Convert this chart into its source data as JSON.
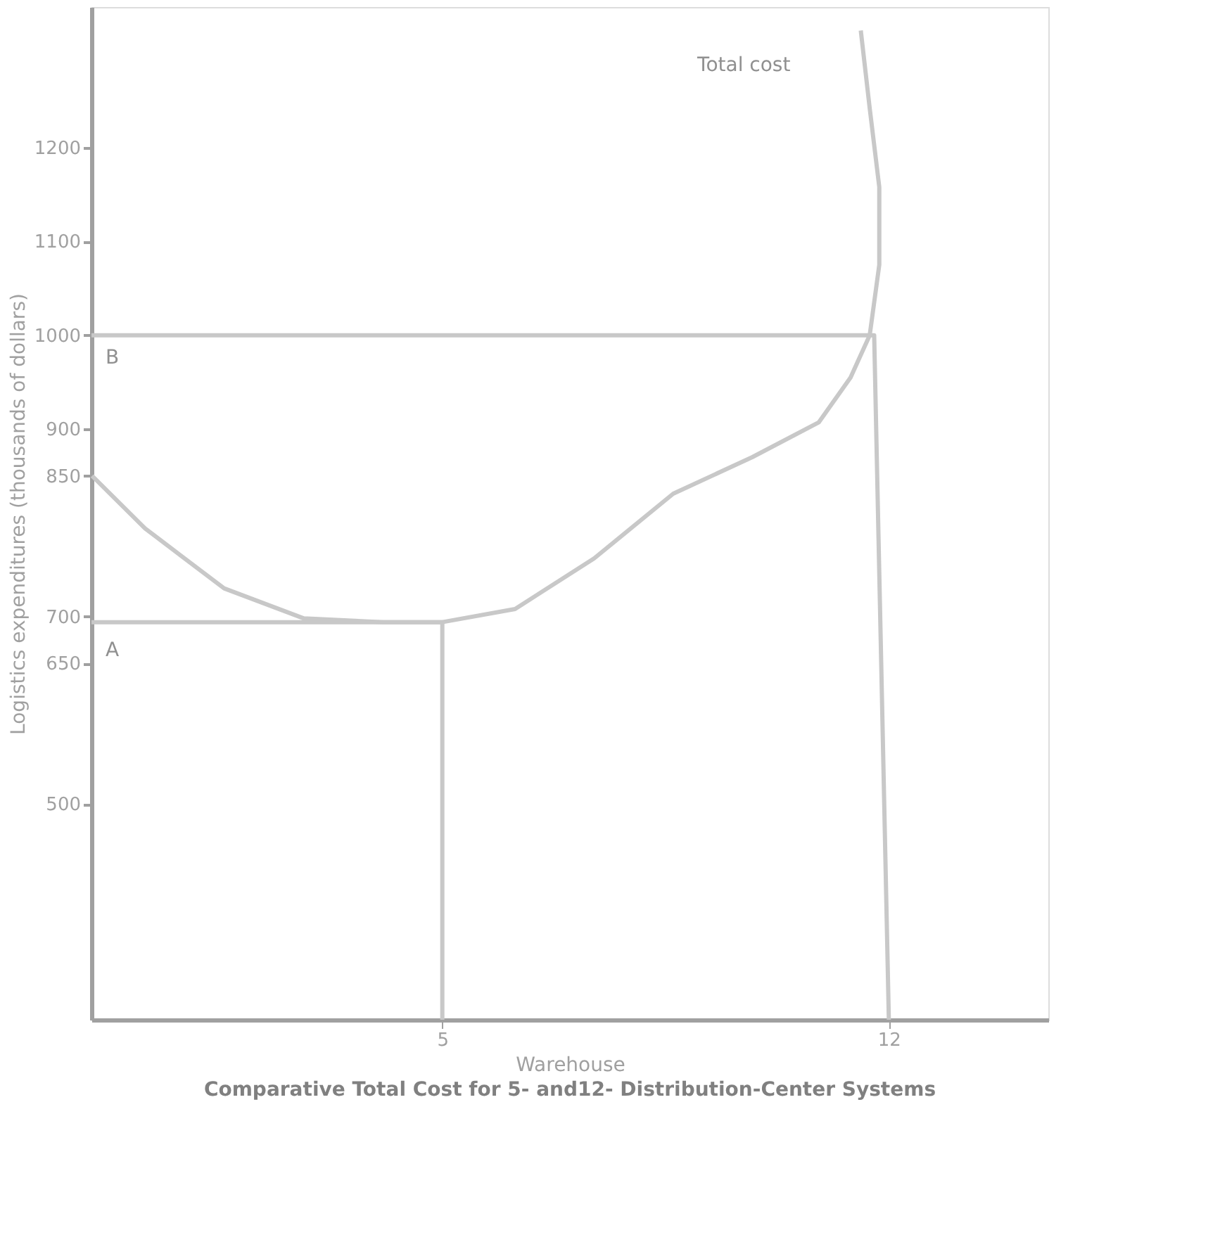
{
  "chart_data": {
    "type": "line",
    "title": "Comparative Total Cost for 5- and12- Distribution-Center Systems",
    "xlabel": "Warehouse",
    "ylabel": "Logistics expenditures (thousands of dollars)",
    "xlim": [
      -0.5,
      14.5
    ],
    "xticks": [
      5,
      12
    ],
    "ylim": [
      270,
      1350
    ],
    "yticks": [
      500,
      650,
      700,
      850,
      900,
      1000,
      1100,
      1200
    ],
    "grid": false,
    "marker": "none",
    "line_style": "solid",
    "series": [
      {
        "color": "#c8c8c8",
        "x": [
          -0.49,
          0.34,
          1.58,
          2.83,
          4.07,
          5,
          6.14,
          7.38,
          8.62,
          9.86,
          10.9,
          11.4,
          11.7,
          11.85,
          11.85,
          11.7,
          11.56
        ],
        "values": [
          850,
          794,
          730,
          698,
          694,
          694,
          708,
          762,
          831,
          870,
          907,
          955,
          1000,
          1075,
          1158,
          1242,
          1325
        ]
      },
      {
        "color": "#c8c8c8",
        "x": [
          -0.5,
          5,
          5
        ],
        "values": [
          694,
          694,
          270
        ]
      },
      {
        "color": "#c8c8c8",
        "x": [
          -0.5,
          11.77,
          12
        ],
        "values": [
          1000,
          1000,
          270
        ]
      }
    ],
    "annotations": [
      "Total cost",
      "A",
      "B"
    ]
  }
}
